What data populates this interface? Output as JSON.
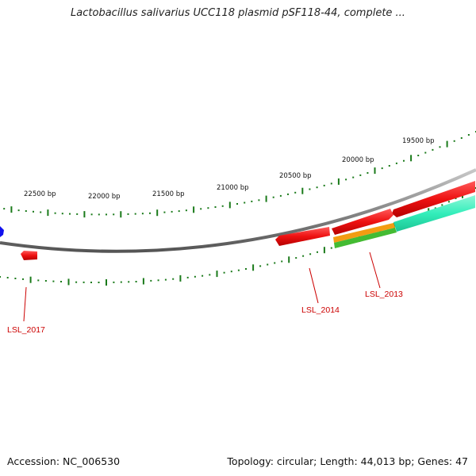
{
  "title": "Lactobacillus salivarius UCC118 plasmid pSF118-44, complete ...",
  "footer": {
    "accession": "Accession: NC_006530",
    "topology": "Topology: circular; Length: 44,013 bp; Genes: 47"
  },
  "colors": {
    "backbone": "#8a8a8a",
    "tick": "#1a7a1a",
    "gene_red": "#ee1111",
    "gene_orange": "#f39c12",
    "gene_green": "#44bb33",
    "gene_mint": "#33eebb",
    "gene_blue": "#1111ee",
    "label": "#cc0000"
  },
  "ruler_labels": [
    "19500 bp",
    "20000 bp",
    "20500 bp",
    "21000 bp",
    "21500 bp",
    "22000 bp",
    "22500 bp"
  ],
  "gene_labels": [
    "LSL_2013",
    "LSL_2014",
    "LSL_2017"
  ]
}
